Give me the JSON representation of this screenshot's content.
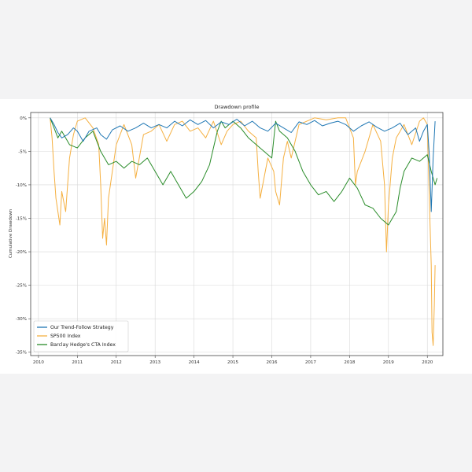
{
  "chart_data": {
    "type": "line",
    "title": "Drawdown profile",
    "xlabel": "",
    "ylabel": "Cumulative Drawdown",
    "xlim": [
      2009.8,
      2020.4
    ],
    "ylim": [
      -35.5,
      0.8
    ],
    "x_ticks": [
      2010,
      2011,
      2012,
      2013,
      2014,
      2015,
      2016,
      2017,
      2018,
      2019,
      2020
    ],
    "y_ticks": [
      0,
      -5,
      -10,
      -15,
      -20,
      -25,
      -30,
      -35
    ],
    "y_tick_labels": [
      "0%",
      "-5%",
      "-10%",
      "-15%",
      "-20%",
      "-25%",
      "-30%",
      "-35%"
    ],
    "grid": true,
    "legend_position": "lower-left",
    "series": [
      {
        "name": "Our Trend-Follow Strategy",
        "color": "#1f77b4",
        "x": [
          2010.3,
          2010.4,
          2010.5,
          2010.6,
          2010.75,
          2010.9,
          2011.0,
          2011.15,
          2011.3,
          2011.5,
          2011.6,
          2011.75,
          2011.9,
          2012.1,
          2012.3,
          2012.5,
          2012.7,
          2012.9,
          2013.1,
          2013.3,
          2013.5,
          2013.7,
          2013.9,
          2014.1,
          2014.3,
          2014.5,
          2014.7,
          2014.9,
          2015.1,
          2015.3,
          2015.5,
          2015.7,
          2015.9,
          2016.1,
          2016.3,
          2016.5,
          2016.7,
          2016.9,
          2017.1,
          2017.3,
          2017.5,
          2017.7,
          2017.9,
          2018.1,
          2018.3,
          2018.5,
          2018.7,
          2018.9,
          2019.1,
          2019.3,
          2019.5,
          2019.7,
          2019.8,
          2019.9,
          2020.0,
          2020.05,
          2020.1,
          2020.15,
          2020.2
        ],
        "values": [
          0,
          -1.0,
          -2.2,
          -3.0,
          -2.5,
          -1.5,
          -2.0,
          -3.5,
          -2.0,
          -1.5,
          -2.5,
          -3.2,
          -1.8,
          -1.2,
          -2.0,
          -1.5,
          -0.8,
          -1.5,
          -1.0,
          -1.5,
          -0.5,
          -1.2,
          -0.3,
          -1.0,
          -0.4,
          -1.5,
          -0.6,
          -1.0,
          -0.2,
          -1.2,
          -0.5,
          -1.5,
          -2.0,
          -0.8,
          -1.5,
          -2.2,
          -0.6,
          -1.0,
          -0.4,
          -1.2,
          -0.8,
          -0.5,
          -1.0,
          -2.0,
          -1.2,
          -0.6,
          -1.4,
          -2.0,
          -1.5,
          -0.8,
          -2.5,
          -1.5,
          -3.5,
          -2.0,
          -1.0,
          -5.5,
          -14.0,
          -6.0,
          -0.5
        ]
      },
      {
        "name": "SP500 Index",
        "color": "#f5b041",
        "x": [
          2010.3,
          2010.35,
          2010.4,
          2010.45,
          2010.5,
          2010.55,
          2010.6,
          2010.7,
          2010.8,
          2010.9,
          2011.0,
          2011.2,
          2011.4,
          2011.55,
          2011.6,
          2011.65,
          2011.7,
          2011.75,
          2011.8,
          2011.9,
          2012.0,
          2012.2,
          2012.4,
          2012.5,
          2012.7,
          2012.9,
          2013.1,
          2013.3,
          2013.5,
          2013.7,
          2013.9,
          2014.1,
          2014.3,
          2014.5,
          2014.7,
          2014.85,
          2015.0,
          2015.2,
          2015.4,
          2015.6,
          2015.65,
          2015.7,
          2015.8,
          2015.9,
          2016.05,
          2016.1,
          2016.2,
          2016.3,
          2016.4,
          2016.5,
          2016.7,
          2016.9,
          2017.1,
          2017.4,
          2017.7,
          2017.9,
          2018.1,
          2018.15,
          2018.2,
          2018.4,
          2018.6,
          2018.8,
          2018.9,
          2018.95,
          2019.0,
          2019.1,
          2019.2,
          2019.4,
          2019.6,
          2019.8,
          2019.9,
          2020.0,
          2020.05,
          2020.1,
          2020.12,
          2020.15,
          2020.18,
          2020.2
        ],
        "values": [
          0,
          -3.0,
          -8.0,
          -12.0,
          -14.0,
          -16.0,
          -11.0,
          -14.0,
          -6.0,
          -2.5,
          -0.5,
          0,
          -1.5,
          -4.0,
          -10.0,
          -18.0,
          -15.0,
          -19.0,
          -12.0,
          -8.0,
          -4.0,
          -1.0,
          -4.0,
          -9.0,
          -2.5,
          -2.0,
          -1.0,
          -3.5,
          -1.0,
          -0.5,
          -2.0,
          -1.5,
          -3.0,
          -0.5,
          -4.0,
          -2.0,
          -1.0,
          -0.5,
          -2.0,
          -3.0,
          -8.0,
          -12.0,
          -9.0,
          -6.0,
          -8.0,
          -11.0,
          -13.0,
          -6.0,
          -3.5,
          -6.0,
          -1.0,
          -0.5,
          0,
          -0.3,
          0,
          0,
          -3.0,
          -10.0,
          -8.0,
          -5.0,
          -1.0,
          -3.5,
          -10.0,
          -20.0,
          -13.0,
          -6.0,
          -3.0,
          -1.0,
          -4.0,
          -0.5,
          0,
          -1.0,
          -12.0,
          -22.0,
          -32.0,
          -34.0,
          -28.0,
          -22.0
        ]
      },
      {
        "name": "Barclay Hedge's CTA Index",
        "color": "#2a8c2a",
        "x": [
          2010.3,
          2010.4,
          2010.5,
          2010.6,
          2010.8,
          2011.0,
          2011.2,
          2011.4,
          2011.6,
          2011.8,
          2012.0,
          2012.2,
          2012.4,
          2012.6,
          2012.8,
          2013.0,
          2013.2,
          2013.4,
          2013.6,
          2013.8,
          2014.0,
          2014.2,
          2014.4,
          2014.5,
          2014.6,
          2014.7,
          2014.8,
          2015.0,
          2015.2,
          2015.4,
          2015.6,
          2015.8,
          2016.0,
          2016.1,
          2016.2,
          2016.4,
          2016.6,
          2016.8,
          2017.0,
          2017.2,
          2017.4,
          2017.6,
          2017.8,
          2018.0,
          2018.2,
          2018.4,
          2018.6,
          2018.8,
          2019.0,
          2019.2,
          2019.3,
          2019.4,
          2019.6,
          2019.8,
          2020.0,
          2020.1,
          2020.2,
          2020.25
        ],
        "values": [
          0,
          -1.5,
          -3.0,
          -2.0,
          -4.0,
          -4.5,
          -3.0,
          -2.0,
          -5.0,
          -7.0,
          -6.5,
          -7.5,
          -6.5,
          -7.0,
          -6.0,
          -8.0,
          -10.0,
          -8.0,
          -10.0,
          -12.0,
          -11.0,
          -9.5,
          -7.0,
          -4.5,
          -2.0,
          -0.5,
          -1.5,
          -0.5,
          -1.5,
          -3.0,
          -4.0,
          -5.0,
          -6.0,
          -0.5,
          -2.0,
          -3.0,
          -5.0,
          -8.0,
          -10.0,
          -11.5,
          -11.0,
          -12.5,
          -11.0,
          -9.0,
          -10.5,
          -13.0,
          -13.5,
          -15.0,
          -16.0,
          -14.0,
          -10.5,
          -8.0,
          -6.0,
          -6.5,
          -5.5,
          -8.0,
          -10.0,
          -9.0
        ]
      }
    ]
  }
}
